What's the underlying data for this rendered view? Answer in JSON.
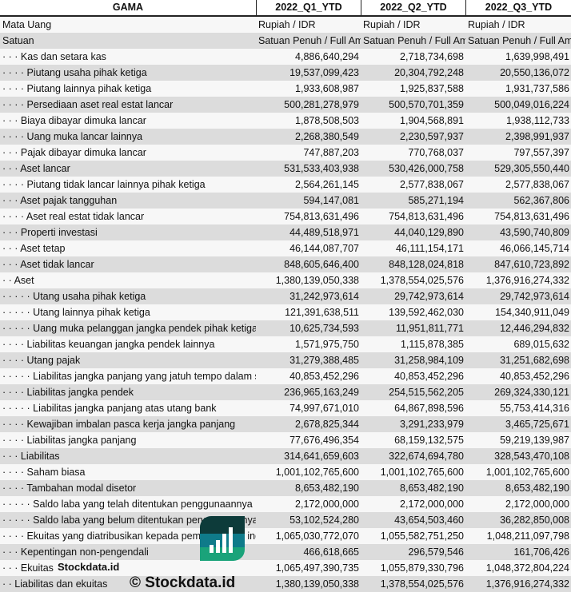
{
  "header": {
    "company": "GAMA",
    "periods": [
      "2022_Q1_YTD",
      "2022_Q2_YTD",
      "2022_Q3_YTD"
    ]
  },
  "meta_rows": [
    {
      "label": "Mata Uang",
      "values": [
        "Rupiah / IDR",
        "Rupiah / IDR",
        "Rupiah / IDR"
      ]
    },
    {
      "label": "Satuan",
      "values": [
        "Satuan Penuh / Full Amount",
        "Satuan Penuh / Full Amount",
        "Satuan Penuh / Full Amount"
      ]
    }
  ],
  "rows": [
    {
      "label": "· · · Kas dan setara kas",
      "values": [
        "4,886,640,294",
        "2,718,734,698",
        "1,639,998,491"
      ]
    },
    {
      "label": "· · · · Piutang usaha pihak ketiga",
      "values": [
        "19,537,099,423",
        "20,304,792,248",
        "20,550,136,072"
      ]
    },
    {
      "label": "· · · · Piutang lainnya pihak ketiga",
      "values": [
        "1,933,608,987",
        "1,925,837,588",
        "1,931,737,586"
      ]
    },
    {
      "label": "· · · · Persediaan aset real estat lancar",
      "values": [
        "500,281,278,979",
        "500,570,701,359",
        "500,049,016,224"
      ]
    },
    {
      "label": "· · · Biaya dibayar dimuka lancar",
      "values": [
        "1,878,508,503",
        "1,904,568,891",
        "1,938,112,733"
      ]
    },
    {
      "label": "· · · · Uang muka lancar lainnya",
      "values": [
        "2,268,380,549",
        "2,230,597,937",
        "2,398,991,937"
      ]
    },
    {
      "label": "· · · Pajak dibayar dimuka lancar",
      "values": [
        "747,887,203",
        "770,768,037",
        "797,557,397"
      ]
    },
    {
      "label": "· · · Aset lancar",
      "values": [
        "531,533,403,938",
        "530,426,000,758",
        "529,305,550,440"
      ]
    },
    {
      "label": "· · · · Piutang tidak lancar lainnya pihak ketiga",
      "values": [
        "2,564,261,145",
        "2,577,838,067",
        "2,577,838,067"
      ]
    },
    {
      "label": "· · · Aset pajak tangguhan",
      "values": [
        "594,147,081",
        "585,271,194",
        "562,367,806"
      ]
    },
    {
      "label": "· · · · Aset real estat tidak lancar",
      "values": [
        "754,813,631,496",
        "754,813,631,496",
        "754,813,631,496"
      ]
    },
    {
      "label": "· · · Properti investasi",
      "values": [
        "44,489,518,971",
        "44,040,129,890",
        "43,590,740,809"
      ]
    },
    {
      "label": "· · · Aset tetap",
      "values": [
        "46,144,087,707",
        "46,111,154,171",
        "46,066,145,714"
      ]
    },
    {
      "label": "· · · Aset tidak lancar",
      "values": [
        "848,605,646,400",
        "848,128,024,818",
        "847,610,723,892"
      ]
    },
    {
      "label": "· · Aset",
      "values": [
        "1,380,139,050,338",
        "1,378,554,025,576",
        "1,376,916,274,332"
      ]
    },
    {
      "label": "· · · · · Utang usaha pihak ketiga",
      "values": [
        "31,242,973,614",
        "29,742,973,614",
        "29,742,973,614"
      ]
    },
    {
      "label": "· · · · · Utang lainnya pihak ketiga",
      "values": [
        "121,391,638,511",
        "139,592,462,030",
        "154,340,911,049"
      ]
    },
    {
      "label": "· · · · · Uang muka pelanggan jangka pendek pihak ketiga",
      "values": [
        "10,625,734,593",
        "11,951,811,771",
        "12,446,294,832"
      ]
    },
    {
      "label": "· · · · Liabilitas keuangan jangka pendek lainnya",
      "values": [
        "1,571,975,750",
        "1,115,878,385",
        "689,015,632"
      ]
    },
    {
      "label": "· · · · Utang pajak",
      "values": [
        "31,279,388,485",
        "31,258,984,109",
        "31,251,682,698"
      ]
    },
    {
      "label": "· · · · · Liabilitas jangka panjang yang jatuh tempo dalam satu tahun",
      "values": [
        "40,853,452,296",
        "40,853,452,296",
        "40,853,452,296"
      ]
    },
    {
      "label": "· · · · Liabilitas jangka pendek",
      "values": [
        "236,965,163,249",
        "254,515,562,205",
        "269,324,330,121"
      ]
    },
    {
      "label": "· · · · · Liabilitas jangka panjang atas utang bank",
      "values": [
        "74,997,671,010",
        "64,867,898,596",
        "55,753,414,316"
      ]
    },
    {
      "label": "· · · · Kewajiban imbalan pasca kerja jangka panjang",
      "values": [
        "2,678,825,344",
        "3,291,233,979",
        "3,465,725,671"
      ]
    },
    {
      "label": "· · · · Liabilitas jangka panjang",
      "values": [
        "77,676,496,354",
        "68,159,132,575",
        "59,219,139,987"
      ]
    },
    {
      "label": "· · · Liabilitas",
      "values": [
        "314,641,659,603",
        "322,674,694,780",
        "328,543,470,108"
      ]
    },
    {
      "label": "· · · · Saham biasa",
      "values": [
        "1,001,102,765,600",
        "1,001,102,765,600",
        "1,001,102,765,600"
      ]
    },
    {
      "label": "· · · · Tambahan modal disetor",
      "values": [
        "8,653,482,190",
        "8,653,482,190",
        "8,653,482,190"
      ]
    },
    {
      "label": "· · · · · Saldo laba yang telah ditentukan penggunaannya",
      "values": [
        "2,172,000,000",
        "2,172,000,000",
        "2,172,000,000"
      ]
    },
    {
      "label": "· · · · · Saldo laba yang belum ditentukan penggunaannya",
      "values": [
        "53,102,524,280",
        "43,654,503,460",
        "36,282,850,008"
      ]
    },
    {
      "label": "· · · · Ekuitas yang diatribusikan kepada pemilik entitas induk",
      "values": [
        "1,065,030,772,070",
        "1,055,582,751,250",
        "1,048,211,097,798"
      ]
    },
    {
      "label": "· · · Kepentingan non-pengendali",
      "values": [
        "466,618,665",
        "296,579,546",
        "161,706,426"
      ]
    },
    {
      "label": "· · · Ekuitas",
      "values": [
        "1,065,497,390,735",
        "1,055,879,330,796",
        "1,048,372,804,224"
      ]
    },
    {
      "label": "· · Liabilitas dan ekuitas",
      "values": [
        "1,380,139,050,338",
        "1,378,554,025,576",
        "1,376,916,274,332"
      ]
    }
  ],
  "watermark": {
    "text": "© Stockdata.id",
    "logo_text": "Stockdata.id"
  },
  "colors": {
    "row_alt": "#dcdcdc",
    "row": "#f7f7f7",
    "logo_dark": "#0d3b3a",
    "logo_mid": "#0f7b8a",
    "logo_green": "#1aa37a"
  }
}
